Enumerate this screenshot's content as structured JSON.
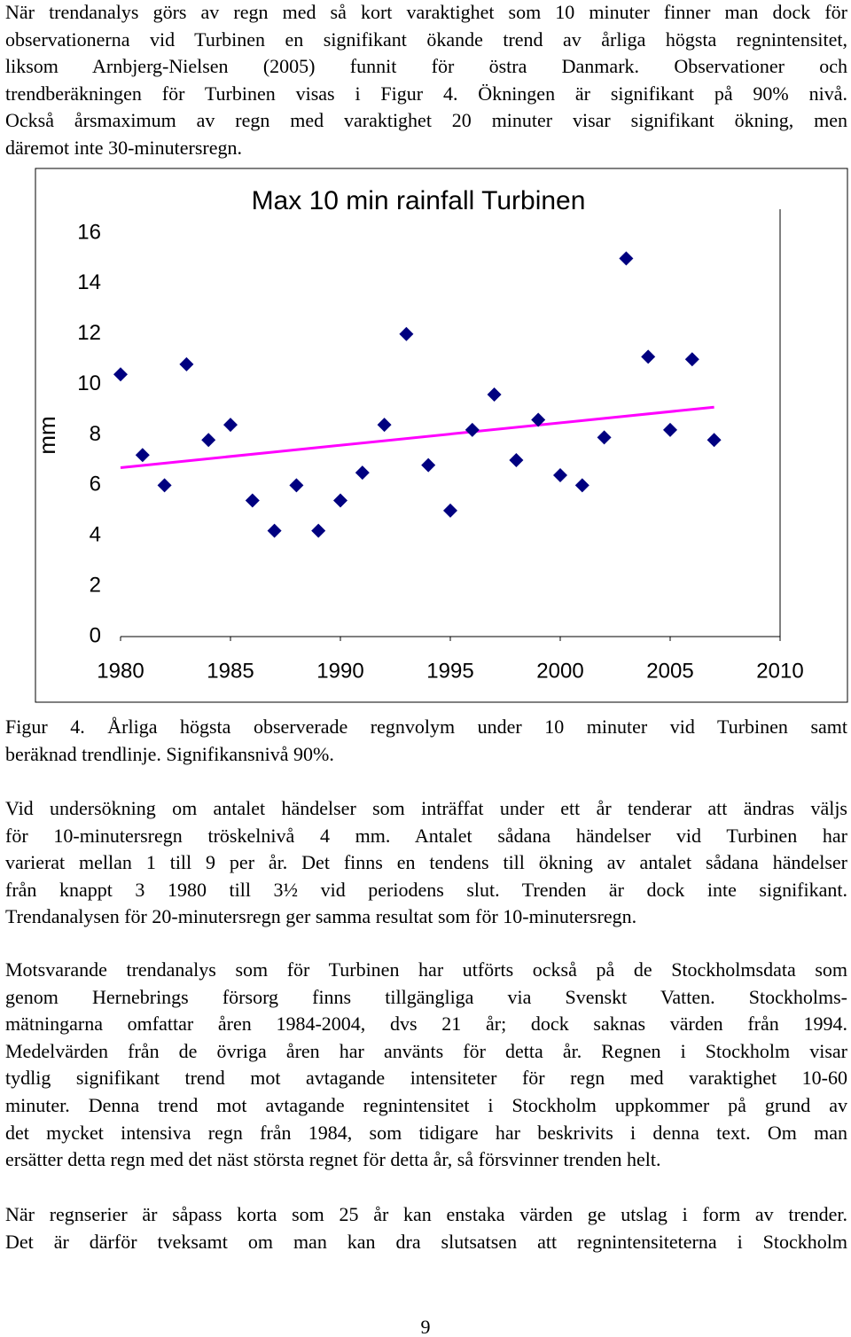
{
  "intro": [
    "När trendanalys görs av regn med så kort varaktighet som 10 minuter finner man dock för",
    "observationerna vid Turbinen en signifikant ökande trend av årliga högsta regnintensitet,",
    "liksom Arnbjerg-Nielsen (2005) funnit för östra Danmark. Observationer och",
    "trendberäkningen för Turbinen visas i Figur 4. Ökningen är signifikant på 90% nivå.",
    "Också årsmaximum av regn med varaktighet 20 minuter visar signifikant ökning, men",
    "däremot inte 30-minutersregn."
  ],
  "chart_data": {
    "type": "scatter",
    "title": "Max 10 min rainfall Turbinen",
    "y_label": "mm",
    "series": [
      {
        "color": "#000080",
        "x": [
          1980,
          1981,
          1982,
          1983,
          1984,
          1985,
          1986,
          1987,
          1988,
          1989,
          1990,
          1991,
          1992,
          1993,
          1994,
          1995,
          1996,
          1997,
          1998,
          1999,
          2000,
          2001,
          2002,
          2003,
          2004,
          2005,
          2006,
          2007
        ],
        "values": [
          10.4,
          7.2,
          6.0,
          10.8,
          7.8,
          8.4,
          5.4,
          4.2,
          6.0,
          4.2,
          5.4,
          6.5,
          8.4,
          12.0,
          6.8,
          5.0,
          8.2,
          9.6,
          7.0,
          8.6,
          6.4,
          6.0,
          7.9,
          15.0,
          11.1,
          8.2,
          11.0,
          7.8
        ]
      }
    ],
    "trend": {
      "x": [
        1980,
        2007
      ],
      "values": [
        6.7,
        9.1
      ],
      "color": "#ff00ff"
    },
    "xlim": [
      1980,
      2010
    ],
    "xticks": [
      1980,
      1985,
      1990,
      1995,
      2000,
      2005,
      2010
    ],
    "ylim": [
      0,
      16
    ],
    "yticks": [
      0,
      2,
      4,
      6,
      8,
      10,
      12,
      14,
      16
    ],
    "grid": false
  },
  "caption": [
    "Figur 4. Årliga högsta observerade regnvolym under 10 minuter vid Turbinen samt",
    "beräknad trendlinje. Signifikansnivå 90%."
  ],
  "body": [
    [
      "Vid undersökning om antalet händelser som inträffat under ett år tenderar att ändras väljs",
      "för 10-minutersregn tröskelnivå 4 mm. Antalet sådana händelser vid Turbinen har",
      "varierat mellan 1 till 9 per år. Det finns en tendens till ökning av antalet sådana händelser",
      "från knappt 3 1980 till 3½ vid periodens slut. Trenden är dock inte signifikant.",
      "Trendanalysen för 20-minutersregn ger samma resultat som för 10-minutersregn."
    ],
    [
      "Motsvarande trendanalys som för Turbinen har utförts också på de Stockholmsdata som",
      "genom Hernebrings försorg finns tillgängliga via Svenskt Vatten. Stockholms-",
      "mätningarna omfattar åren 1984-2004, dvs 21 år; dock saknas värden från 1994.",
      "Medelvärden från de övriga åren har använts för detta år. Regnen i Stockholm visar",
      "tydlig signifikant trend mot avtagande intensiteter för regn med varaktighet 10-60",
      "minuter. Denna trend mot avtagande regnintensitet i Stockholm uppkommer på grund av",
      "det mycket intensiva regn från 1984, som tidigare har beskrivits i denna text. Om man",
      "ersätter detta regn med det näst största regnet för detta år, så försvinner trenden helt."
    ],
    [
      "När regnserier är såpass korta som 25 år kan enstaka värden ge utslag i form av trender.",
      "Det är därför tveksamt om man kan dra slutsatsen att regnintensiteterna i Stockholm"
    ]
  ],
  "page_number": "9"
}
